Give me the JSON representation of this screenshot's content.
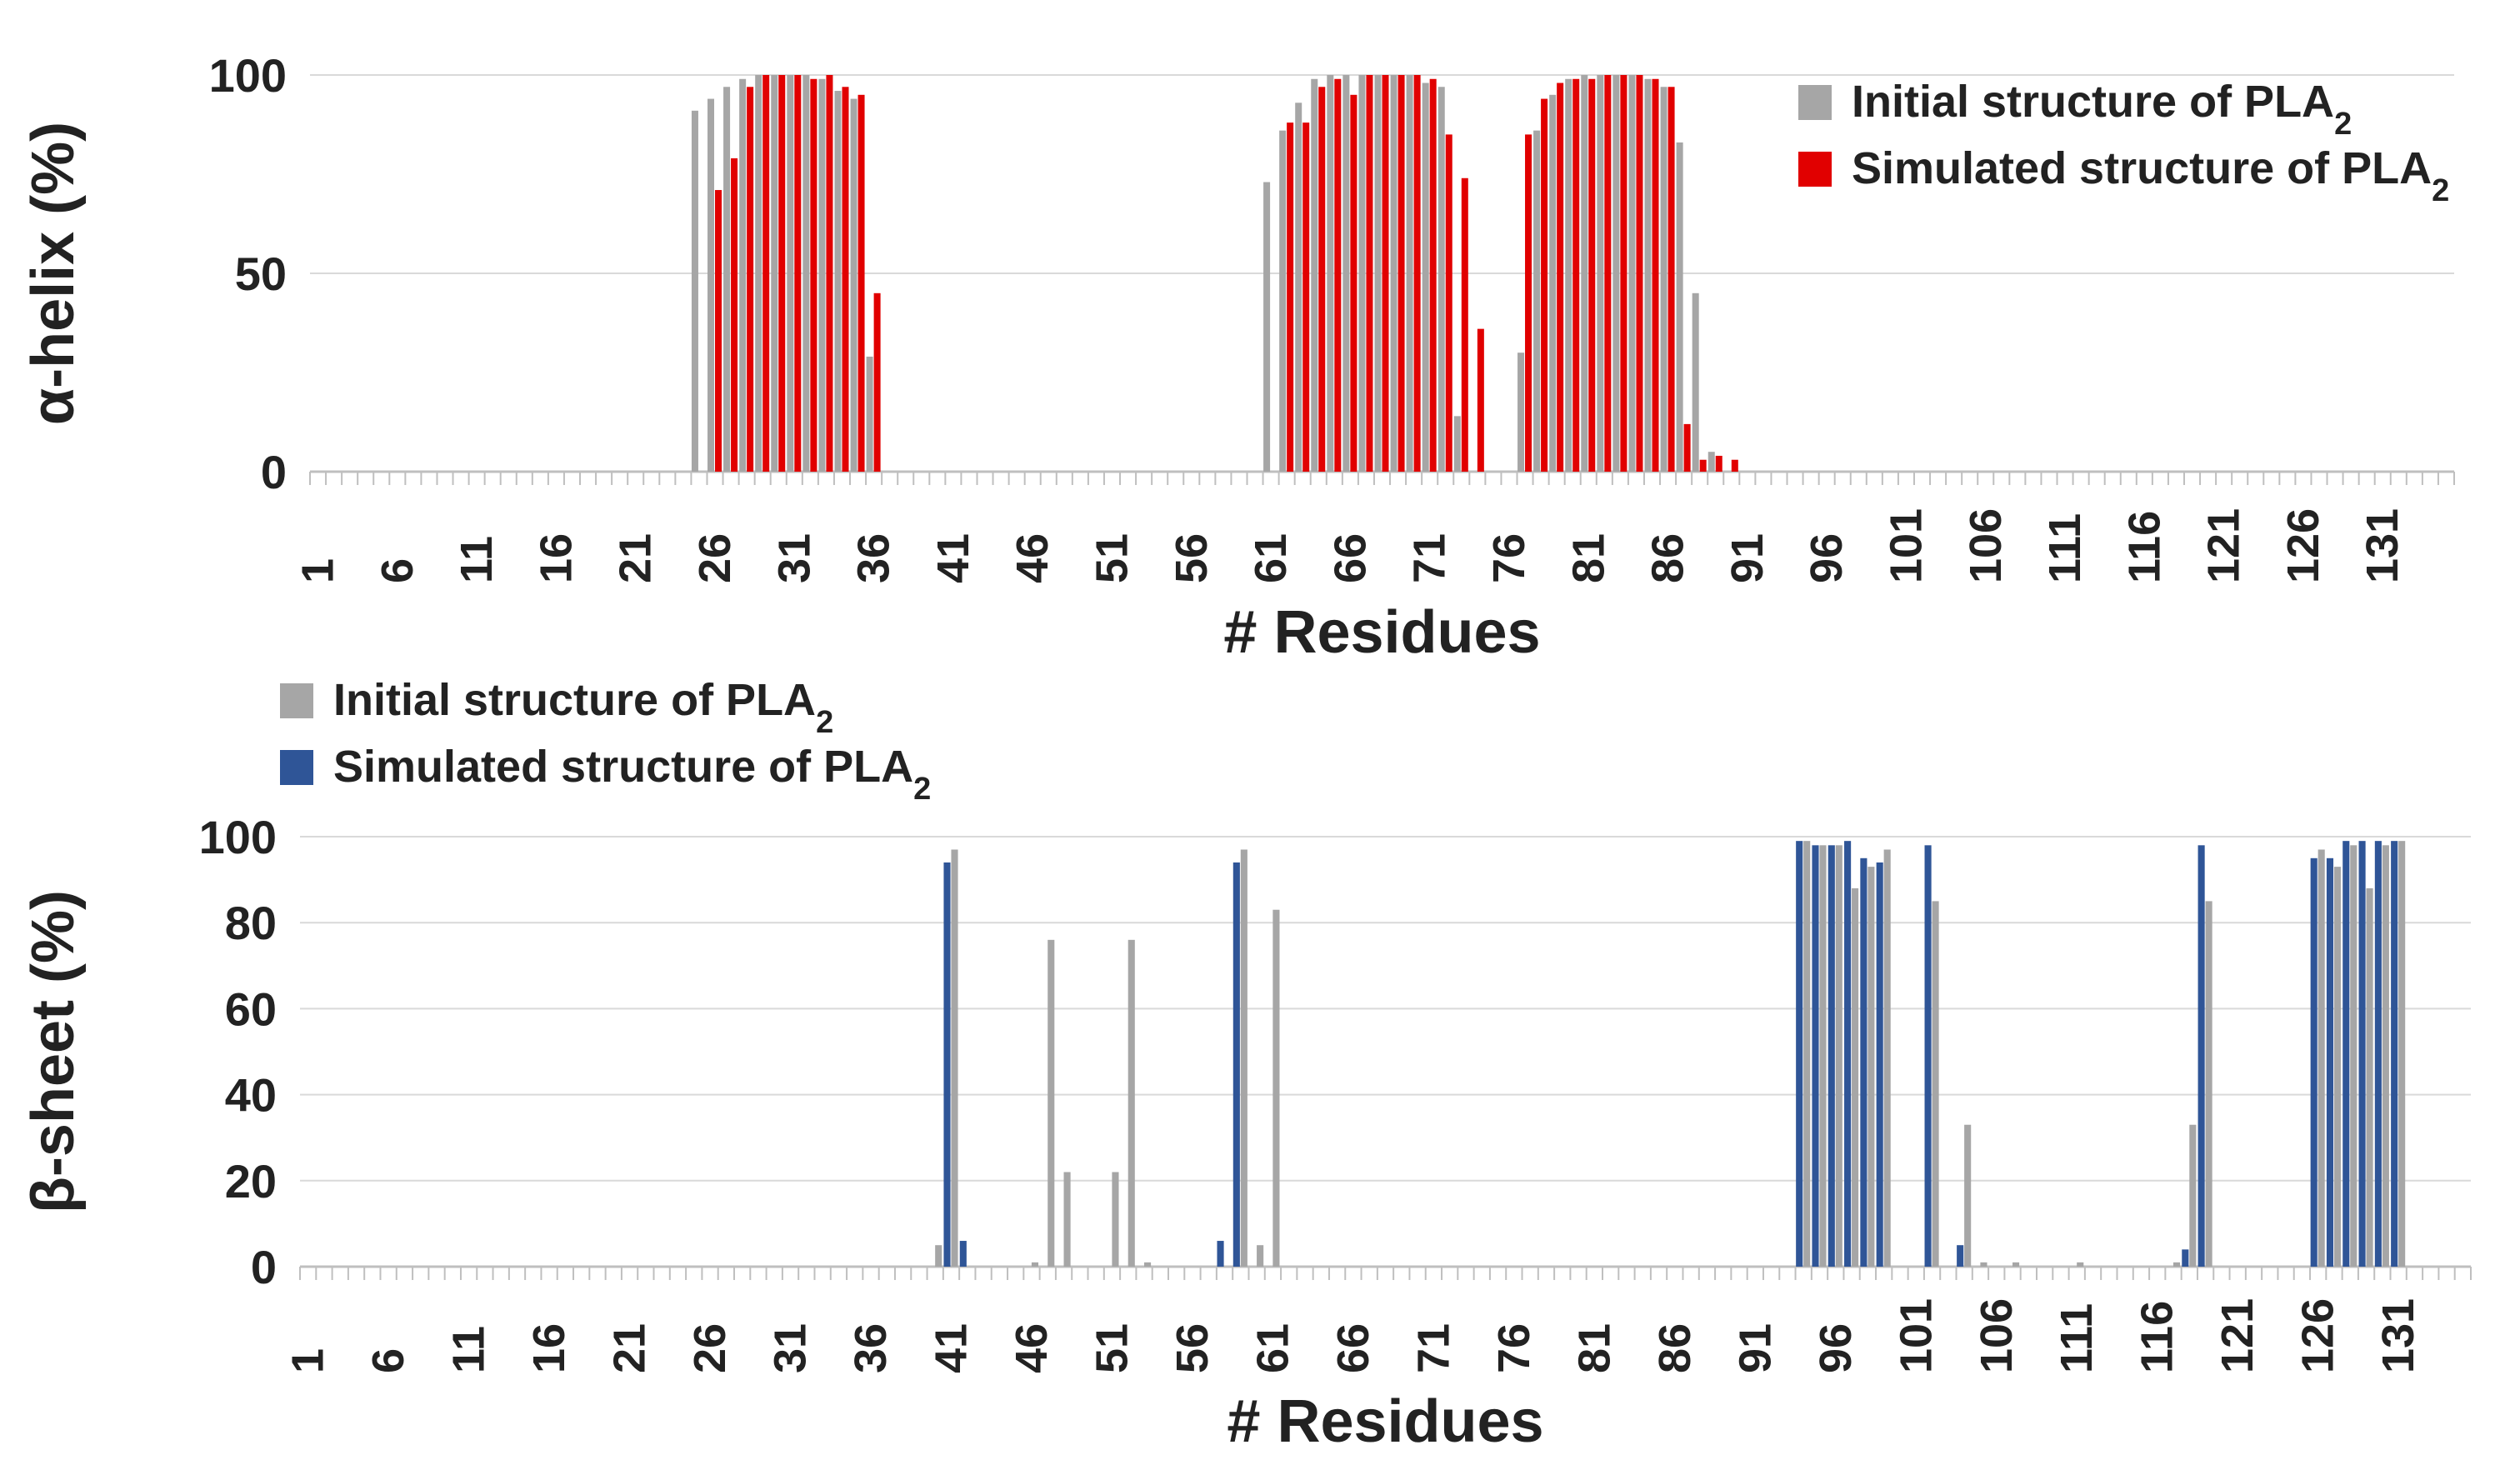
{
  "chart_data": [
    {
      "type": "bar",
      "ylabel": "α-helix (%)",
      "xlabel": "# Residues",
      "ylim": [
        0,
        100
      ],
      "yticks": [
        0,
        50,
        100
      ],
      "xtick_labels": [
        "1",
        "6",
        "11",
        "16",
        "21",
        "26",
        "31",
        "36",
        "41",
        "46",
        "51",
        "56",
        "61",
        "66",
        "71",
        "76",
        "81",
        "86",
        "91",
        "96",
        "101",
        "106",
        "111",
        "116",
        "121",
        "126",
        "131"
      ],
      "legend_position": "top-right",
      "series": [
        {
          "name": "Initial structure of  PLA",
          "subscript": "2",
          "color": "#a6a6a6",
          "points": [
            [
              25,
              91
            ],
            [
              26,
              94
            ],
            [
              27,
              97
            ],
            [
              28,
              99
            ],
            [
              29,
              100
            ],
            [
              30,
              100
            ],
            [
              31,
              100
            ],
            [
              32,
              100
            ],
            [
              33,
              99
            ],
            [
              34,
              96
            ],
            [
              35,
              94
            ],
            [
              36,
              29
            ],
            [
              61,
              73
            ],
            [
              62,
              86
            ],
            [
              63,
              93
            ],
            [
              64,
              99
            ],
            [
              65,
              100
            ],
            [
              66,
              100
            ],
            [
              67,
              100
            ],
            [
              68,
              100
            ],
            [
              69,
              100
            ],
            [
              70,
              100
            ],
            [
              71,
              98
            ],
            [
              72,
              97
            ],
            [
              73,
              14
            ],
            [
              77,
              30
            ],
            [
              78,
              86
            ],
            [
              79,
              95
            ],
            [
              80,
              99
            ],
            [
              81,
              100
            ],
            [
              82,
              100
            ],
            [
              83,
              100
            ],
            [
              84,
              100
            ],
            [
              85,
              99
            ],
            [
              86,
              97
            ],
            [
              87,
              83
            ],
            [
              88,
              45
            ],
            [
              89,
              5
            ]
          ]
        },
        {
          "name": "Simulated structure of PLA",
          "subscript": "2",
          "color": "#e10000",
          "points": [
            [
              26,
              71
            ],
            [
              27,
              79
            ],
            [
              28,
              97
            ],
            [
              29,
              100
            ],
            [
              30,
              100
            ],
            [
              31,
              100
            ],
            [
              32,
              99
            ],
            [
              33,
              100
            ],
            [
              34,
              97
            ],
            [
              35,
              95
            ],
            [
              36,
              45
            ],
            [
              62,
              88
            ],
            [
              63,
              88
            ],
            [
              64,
              97
            ],
            [
              65,
              99
            ],
            [
              66,
              95
            ],
            [
              67,
              100
            ],
            [
              68,
              100
            ],
            [
              69,
              100
            ],
            [
              70,
              100
            ],
            [
              71,
              99
            ],
            [
              72,
              85
            ],
            [
              73,
              74
            ],
            [
              74,
              36
            ],
            [
              77,
              85
            ],
            [
              78,
              94
            ],
            [
              79,
              98
            ],
            [
              80,
              99
            ],
            [
              81,
              99
            ],
            [
              82,
              100
            ],
            [
              83,
              100
            ],
            [
              84,
              100
            ],
            [
              85,
              99
            ],
            [
              86,
              97
            ],
            [
              87,
              12
            ],
            [
              88,
              3
            ],
            [
              89,
              4
            ],
            [
              90,
              3
            ]
          ]
        }
      ]
    },
    {
      "type": "bar",
      "ylabel": "β-sheet (%)",
      "xlabel": "# Residues",
      "ylim": [
        0,
        100
      ],
      "yticks": [
        0,
        20,
        40,
        60,
        80,
        100
      ],
      "xtick_labels": [
        "1",
        "6",
        "11",
        "16",
        "21",
        "26",
        "31",
        "36",
        "41",
        "46",
        "51",
        "56",
        "61",
        "66",
        "71",
        "76",
        "81",
        "86",
        "91",
        "96",
        "101",
        "106",
        "111",
        "116",
        "121",
        "126",
        "131"
      ],
      "legend_position": "top-left",
      "series": [
        {
          "name": "Initial structure of  PLA",
          "subscript": "2",
          "color": "#a6a6a6",
          "points": [
            [
              40,
              5
            ],
            [
              41,
              97
            ],
            [
              46,
              1
            ],
            [
              47,
              76
            ],
            [
              48,
              22
            ],
            [
              51,
              22
            ],
            [
              52,
              76
            ],
            [
              53,
              1
            ],
            [
              59,
              97
            ],
            [
              60,
              5
            ],
            [
              61,
              83
            ],
            [
              94,
              99
            ],
            [
              95,
              98
            ],
            [
              96,
              98
            ],
            [
              97,
              88
            ],
            [
              98,
              93
            ],
            [
              99,
              97
            ],
            [
              102,
              85
            ],
            [
              104,
              33
            ],
            [
              105,
              1
            ],
            [
              107,
              1
            ],
            [
              111,
              1
            ],
            [
              117,
              1
            ],
            [
              118,
              33
            ],
            [
              119,
              85
            ],
            [
              126,
              97
            ],
            [
              127,
              93
            ],
            [
              128,
              98
            ],
            [
              129,
              88
            ],
            [
              130,
              98
            ],
            [
              131,
              99
            ]
          ]
        },
        {
          "name": "Simulated structure of PLA",
          "subscript": "2",
          "color": "#2f5597",
          "points": [
            [
              41,
              94
            ],
            [
              42,
              6
            ],
            [
              58,
              6
            ],
            [
              59,
              94
            ],
            [
              94,
              99
            ],
            [
              95,
              98
            ],
            [
              96,
              98
            ],
            [
              97,
              99
            ],
            [
              98,
              95
            ],
            [
              99,
              94
            ],
            [
              102,
              98
            ],
            [
              104,
              5
            ],
            [
              118,
              4
            ],
            [
              119,
              98
            ],
            [
              126,
              95
            ],
            [
              127,
              95
            ],
            [
              128,
              99
            ],
            [
              129,
              99
            ],
            [
              130,
              99
            ],
            [
              131,
              99
            ]
          ]
        }
      ]
    }
  ]
}
